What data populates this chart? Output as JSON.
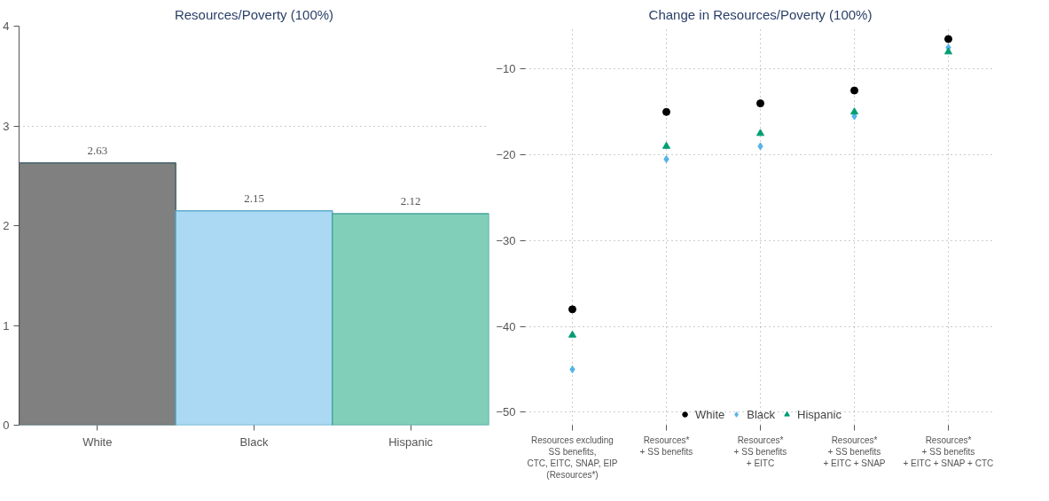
{
  "chart_data": [
    {
      "type": "bar",
      "title": "Resources/Poverty (100%)",
      "categories": [
        "White",
        "Black",
        "Hispanic"
      ],
      "values": [
        2.63,
        2.15,
        2.12
      ],
      "colors": [
        "#808080",
        "#abd9f3",
        "#82cfb9"
      ],
      "ylim": [
        0,
        4
      ],
      "yticks": [
        0,
        1,
        2,
        3,
        4
      ],
      "grid": "y",
      "data_labels": true
    },
    {
      "type": "scatter",
      "title": "Change in Resources/Poverty (100%)",
      "categories": [
        "Resources excluding\nSS benefits,\nCTC, EITC, SNAP, EIP\n(Resources*)",
        "Resources*\n+ SS benefits",
        "Resources*\n+ SS benefits\n+ EITC",
        "Resources*\n+ SS benefits\n+ EITC + SNAP",
        "Resources*\n+ SS benefits\n+ EITC + SNAP + CTC"
      ],
      "series": [
        {
          "name": "White",
          "color": "#000000",
          "marker": "circle",
          "values": [
            -38,
            -15,
            -14,
            -12.5,
            -6.5
          ]
        },
        {
          "name": "Black",
          "color": "#56b4e9",
          "marker": "diamond",
          "values": [
            -45,
            -20.5,
            -19,
            -15.5,
            -7.5
          ]
        },
        {
          "name": "Hispanic",
          "color": "#009e73",
          "marker": "triangle",
          "values": [
            -41,
            -19,
            -17.5,
            -15,
            -8
          ]
        }
      ],
      "ylim": [
        -51.5,
        -5
      ],
      "yticks": [
        -50,
        -40,
        -30,
        -20,
        -10
      ],
      "grid": true,
      "legend": "bottom"
    }
  ]
}
